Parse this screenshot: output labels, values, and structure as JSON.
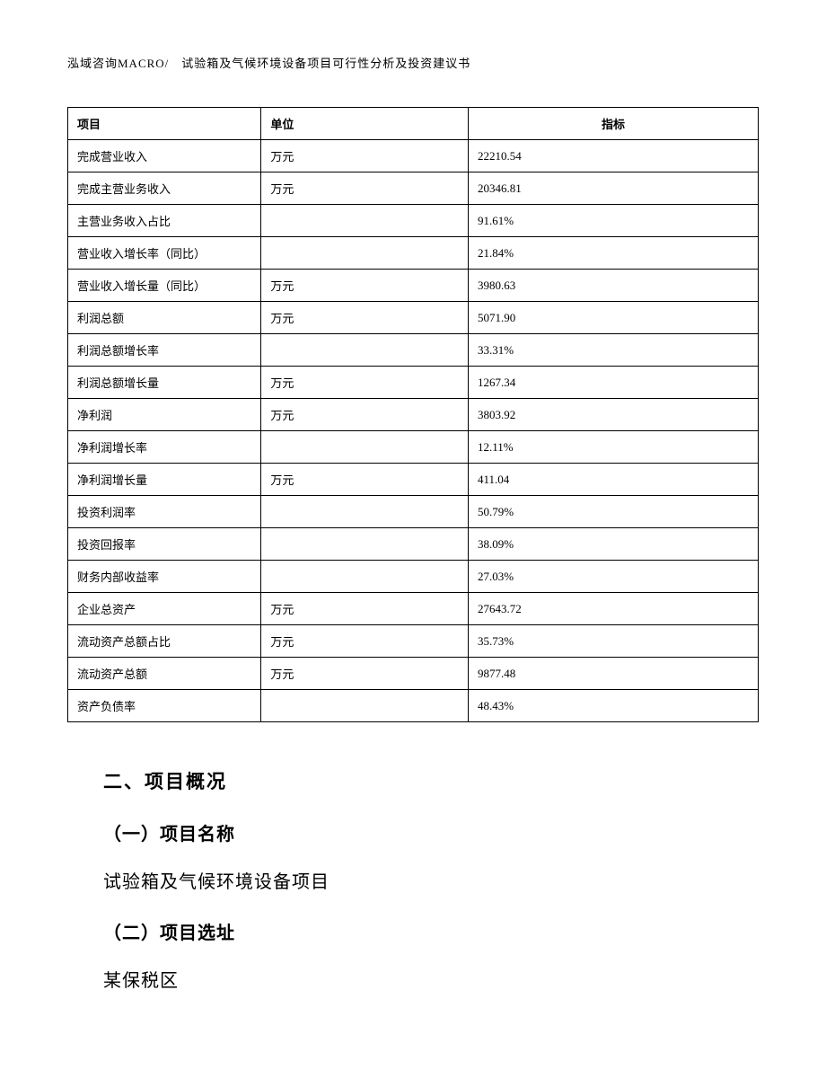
{
  "header": {
    "text": "泓域咨询MACRO/　试验箱及气候环境设备项目可行性分析及投资建议书"
  },
  "table": {
    "columns": [
      "项目",
      "单位",
      "指标"
    ],
    "column_widths": [
      "28%",
      "30%",
      "42%"
    ],
    "border_color": "#000000",
    "font_size": 13,
    "rows": [
      [
        "完成营业收入",
        "万元",
        "22210.54"
      ],
      [
        "完成主营业务收入",
        "万元",
        "20346.81"
      ],
      [
        "主营业务收入占比",
        "",
        "91.61%"
      ],
      [
        "营业收入增长率（同比）",
        "",
        "21.84%"
      ],
      [
        "营业收入增长量（同比）",
        "万元",
        "3980.63"
      ],
      [
        "利润总额",
        "万元",
        "5071.90"
      ],
      [
        "利润总额增长率",
        "",
        "33.31%"
      ],
      [
        "利润总额增长量",
        "万元",
        "1267.34"
      ],
      [
        "净利润",
        "万元",
        "3803.92"
      ],
      [
        "净利润增长率",
        "",
        "12.11%"
      ],
      [
        "净利润增长量",
        "万元",
        "411.04"
      ],
      [
        "投资利润率",
        "",
        "50.79%"
      ],
      [
        "投资回报率",
        "",
        "38.09%"
      ],
      [
        "财务内部收益率",
        "",
        "27.03%"
      ],
      [
        "企业总资产",
        "万元",
        "27643.72"
      ],
      [
        "流动资产总额占比",
        "万元",
        "35.73%"
      ],
      [
        "流动资产总额",
        "万元",
        "9877.48"
      ],
      [
        "资产负债率",
        "",
        "48.43%"
      ]
    ]
  },
  "sections": {
    "heading": "二、项目概况",
    "sub1_title": "（一）项目名称",
    "sub1_text": "试验箱及气候环境设备项目",
    "sub2_title": "（二）项目选址",
    "sub2_text": "某保税区"
  },
  "styles": {
    "background_color": "#ffffff",
    "text_color": "#000000",
    "heading_fontsize": 21,
    "subheading_fontsize": 20,
    "body_fontsize": 20,
    "header_fontsize": 13
  }
}
